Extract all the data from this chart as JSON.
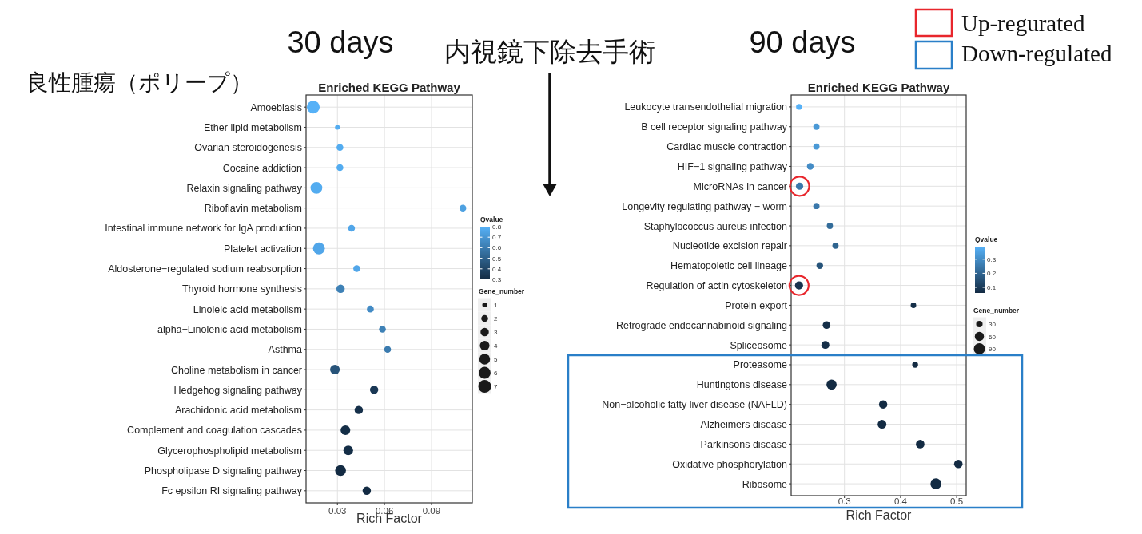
{
  "chart_data": [
    {
      "type": "bubble",
      "orientation": "horizontal",
      "title": "Enriched KEGG Pathway",
      "xlabel": "Rich Factor",
      "clabel": "Qvalue",
      "legend_title": "Gene_number",
      "grid": true,
      "marker": "circle",
      "categories": [
        "Amoebiasis",
        "Ether lipid metabolism",
        "Ovarian steroidogenesis",
        "Cocaine addiction",
        "Relaxin signaling pathway",
        "Riboflavin metabolism",
        "Intestinal immune network for IgA production",
        "Platelet activation",
        "Aldosterone−regulated sodium reabsorption",
        "Thyroid hormone synthesis",
        "Linoleic acid metabolism",
        "alpha−Linolenic acid metabolism",
        "Asthma",
        "Choline metabolism in cancer",
        "Hedgehog signaling pathway",
        "Arachidonic acid metabolism",
        "Complement and coagulation cascades",
        "Glycerophospholipid metabolism",
        "Phospholipase D signaling pathway",
        "Fc epsilon RI signaling pathway"
      ],
      "values": [
        0.0146,
        0.03,
        0.0316,
        0.0316,
        0.0166,
        0.11,
        0.039,
        0.0182,
        0.0423,
        0.032,
        0.051,
        0.0587,
        0.062,
        0.0284,
        0.0534,
        0.0436,
        0.0351,
        0.0369,
        0.032,
        0.0487
      ],
      "sizes": [
        7,
        1,
        2,
        2,
        6,
        2,
        2,
        6,
        2,
        3,
        2,
        2,
        2,
        4,
        3,
        3,
        4,
        4,
        5,
        3
      ],
      "cvalues": [
        0.8,
        0.78,
        0.78,
        0.78,
        0.78,
        0.74,
        0.76,
        0.76,
        0.76,
        0.62,
        0.66,
        0.62,
        0.6,
        0.45,
        0.35,
        0.32,
        0.31,
        0.31,
        0.3,
        0.3
      ],
      "xlim": [
        0.01,
        0.116
      ],
      "xticks": [
        0.03,
        0.06,
        0.09
      ],
      "clim": [
        0.3,
        0.8
      ],
      "cticks": [
        0.3,
        0.4,
        0.5,
        0.6,
        0.7,
        0.8
      ],
      "size_legend": [
        1,
        2,
        3,
        4,
        5,
        6,
        7
      ],
      "annotations": [
        "30 days",
        "内視鏡下除去手術",
        "良性腫瘍（ポリープ）"
      ]
    },
    {
      "type": "bubble",
      "orientation": "horizontal",
      "title": "Enriched KEGG Pathway",
      "xlabel": "Rich Factor",
      "clabel": "Qvalue",
      "legend_title": "Gene_number",
      "grid": true,
      "marker": "circle",
      "categories": [
        "Leukocyte transendothelial migration",
        "B cell receptor signaling pathway",
        "Cardiac muscle contraction",
        "HIF−1 signaling pathway",
        "MicroRNAs in cancer",
        "Longevity regulating pathway − worm",
        "Staphylococcus aureus infection",
        "Nucleotide excision repair",
        "Hematopoietic cell lineage",
        "Regulation of actin cytoskeleton",
        "Protein export",
        "Retrograde endocannabinoid signaling",
        "Spliceosome",
        "Proteasome",
        "Huntingtons disease",
        "Non−alcoholic fatty liver disease (NAFLD)",
        "Alzheimers disease",
        "Parkinsons disease",
        "Oxidative phosphorylation",
        "Ribosome"
      ],
      "values": [
        0.219,
        0.25,
        0.25,
        0.239,
        0.22,
        0.25,
        0.274,
        0.284,
        0.256,
        0.219,
        0.423,
        0.268,
        0.266,
        0.426,
        0.277,
        0.369,
        0.367,
        0.435,
        0.503,
        0.463
      ],
      "sizes": [
        25,
        28,
        28,
        32,
        38,
        28,
        28,
        28,
        32,
        48,
        22,
        42,
        45,
        25,
        75,
        50,
        55,
        52,
        52,
        85
      ],
      "cvalues": [
        0.39,
        0.33,
        0.33,
        0.3,
        0.25,
        0.25,
        0.22,
        0.2,
        0.16,
        0.08,
        0.07,
        0.07,
        0.07,
        0.06,
        0.06,
        0.06,
        0.06,
        0.06,
        0.06,
        0.06
      ],
      "xlim": [
        0.205,
        0.517
      ],
      "xticks": [
        0.3,
        0.4,
        0.5
      ],
      "clim": [
        0.06,
        0.39
      ],
      "cticks": [
        0.1,
        0.2,
        0.3
      ],
      "size_legend": [
        30,
        60,
        90
      ],
      "annotations": [
        "90 days",
        "Up-regurated",
        "Down-regulated"
      ]
    }
  ]
}
